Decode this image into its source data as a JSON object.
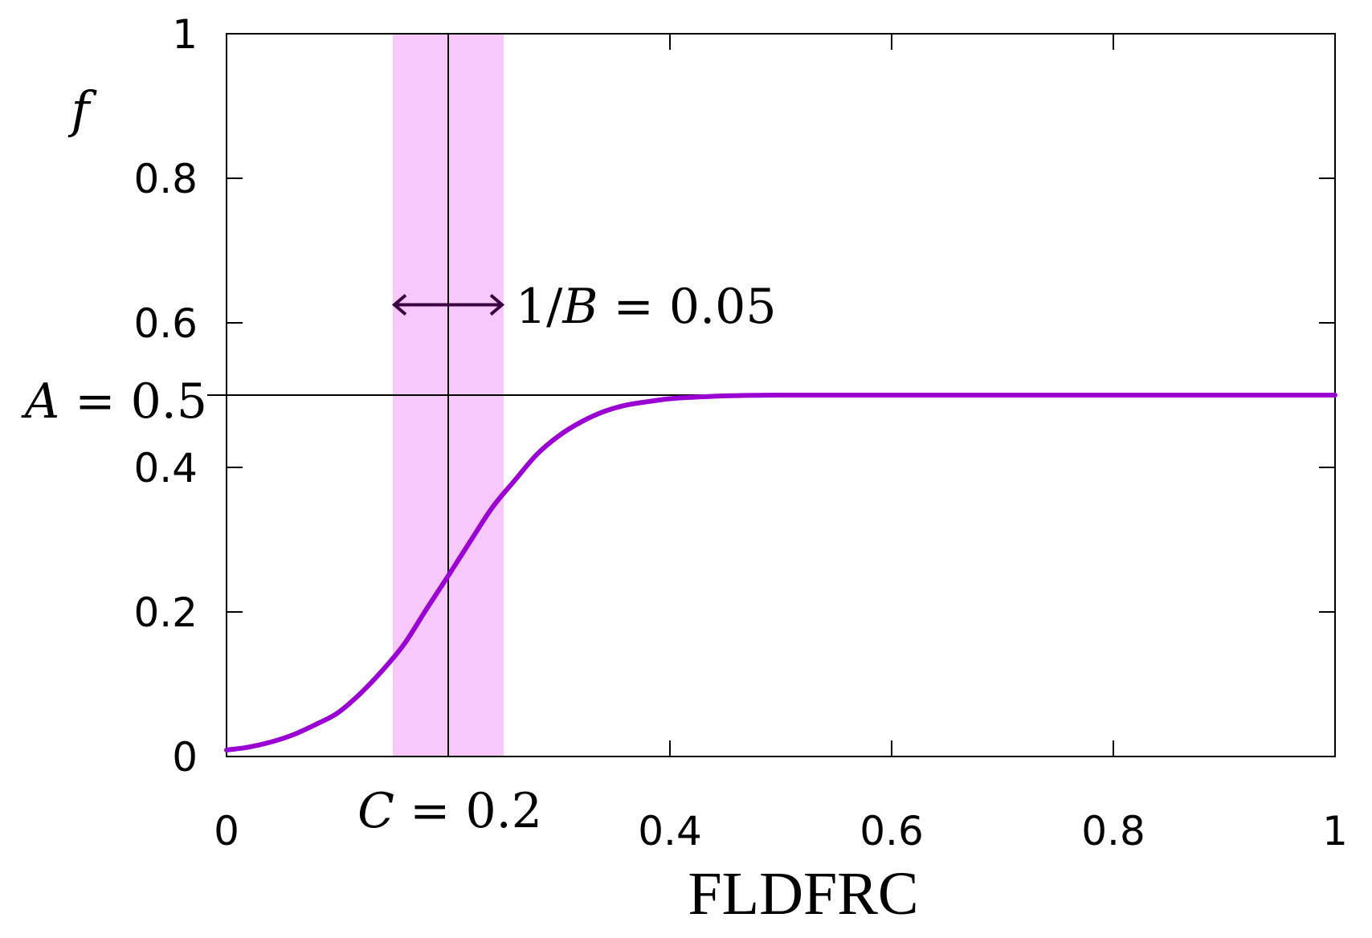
{
  "chart_data": {
    "type": "line",
    "title": "",
    "xlabel": "FLDFRC",
    "ylabel": "f",
    "xlim": [
      0,
      1
    ],
    "ylim": [
      0,
      1
    ],
    "x_ticks": [
      0,
      0.2,
      0.4,
      0.6,
      0.8,
      1
    ],
    "x_tick_labels": [
      "0",
      "",
      "0.4",
      "0.6",
      "0.8",
      "1"
    ],
    "y_ticks": [
      0,
      0.2,
      0.4,
      0.5,
      0.6,
      0.8,
      1
    ],
    "y_tick_labels": [
      "0",
      "0.2",
      "0.4",
      "",
      "0.6",
      "0.8",
      "1"
    ],
    "grid": false,
    "series": [
      {
        "color": "#9b00d3",
        "x": [
          0,
          0.02,
          0.04,
          0.06,
          0.08,
          0.1,
          0.12,
          0.14,
          0.16,
          0.18,
          0.2,
          0.22,
          0.24,
          0.26,
          0.28,
          0.3,
          0.32,
          0.34,
          0.36,
          0.38,
          0.4,
          0.42,
          0.45,
          0.5,
          0.6,
          0.7,
          0.8,
          0.9,
          1.0
        ],
        "y": [
          0.009,
          0.013,
          0.02,
          0.03,
          0.044,
          0.06,
          0.086,
          0.118,
          0.155,
          0.203,
          0.25,
          0.298,
          0.345,
          0.382,
          0.418,
          0.444,
          0.463,
          0.477,
          0.486,
          0.491,
          0.495,
          0.497,
          0.499,
          0.5,
          0.5,
          0.5,
          0.5,
          0.5,
          0.5
        ]
      }
    ],
    "annotations": {
      "band": {
        "x_start": 0.15,
        "x_end": 0.25,
        "color": "#f9c8fb"
      },
      "vline": {
        "x": 0.2,
        "color": "#000000"
      },
      "hline": {
        "y": 0.5,
        "color": "#000000"
      },
      "arrow": {
        "x_start": 0.15,
        "x_end": 0.25,
        "y": 0.625,
        "color": "#3a0040"
      },
      "B_label": {
        "prefix": "1/",
        "var": "B",
        "suffix": " = 0.05"
      },
      "A_label": {
        "var": "A",
        "suffix": " = 0.5"
      },
      "C_label": {
        "var": "C",
        "suffix": " = 0.2"
      }
    }
  }
}
